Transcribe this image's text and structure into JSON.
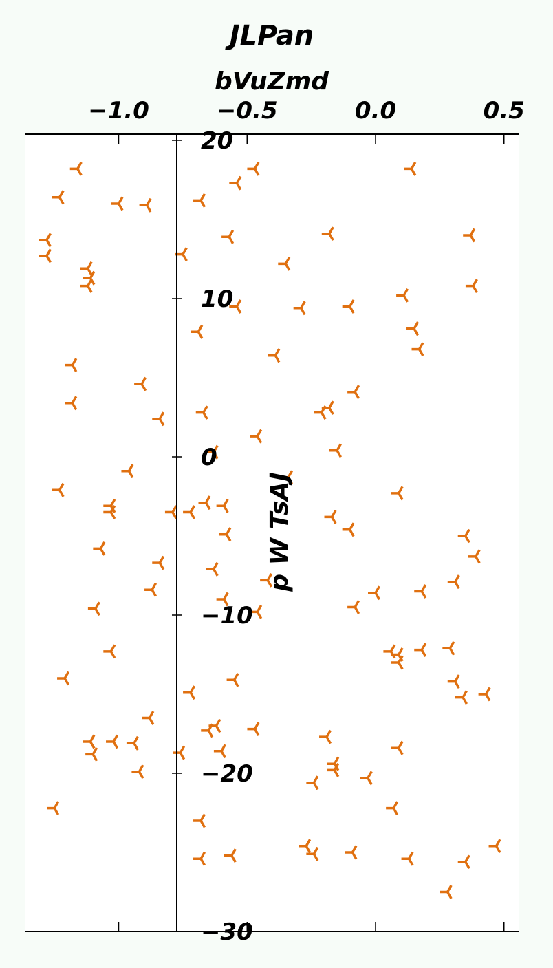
{
  "chart_data": {
    "type": "scatter",
    "title": "JLPan",
    "xlabel": "bVuZmd",
    "ylabel": "p W TsAJ",
    "xlim": [
      -1.365,
      0.555
    ],
    "ylim": [
      -30,
      20.3
    ],
    "x_ticks": [
      -1.0,
      -0.5,
      0.0,
      0.5
    ],
    "x_tick_labels": [
      "−1.0",
      "−0.5",
      "0.0",
      "0.5"
    ],
    "y_ticks": [
      20,
      10,
      0,
      -10,
      -20,
      -30
    ],
    "y_tick_labels": [
      "20",
      "10",
      "0",
      "−10",
      "−20",
      "−30"
    ],
    "x_axis_position": "top",
    "grid": false,
    "legend": "none",
    "marker": "tri-left",
    "marker_color": "#e07010",
    "series": [
      {
        "values": [
          [
            -1.16,
            18.2
          ],
          [
            -0.47,
            18.2
          ],
          [
            0.14,
            18.2
          ],
          [
            -0.54,
            17.3
          ],
          [
            -1.23,
            16.4
          ],
          [
            -1.0,
            16.0
          ],
          [
            -0.89,
            15.9
          ],
          [
            -0.68,
            16.2
          ],
          [
            -1.28,
            13.7
          ],
          [
            -0.57,
            13.9
          ],
          [
            -0.18,
            14.1
          ],
          [
            0.37,
            14.0
          ],
          [
            -1.28,
            12.7
          ],
          [
            -0.75,
            12.8
          ],
          [
            -0.35,
            12.2
          ],
          [
            -1.12,
            11.9
          ],
          [
            -1.11,
            11.3
          ],
          [
            -1.12,
            10.8
          ],
          [
            0.38,
            10.8
          ],
          [
            0.11,
            10.2
          ],
          [
            -0.54,
            9.5
          ],
          [
            -0.29,
            9.4
          ],
          [
            -0.1,
            9.5
          ],
          [
            0.15,
            8.1
          ],
          [
            -0.69,
            7.9
          ],
          [
            0.17,
            6.8
          ],
          [
            -0.39,
            6.4
          ],
          [
            -1.18,
            5.8
          ],
          [
            -0.91,
            4.6
          ],
          [
            -1.18,
            3.4
          ],
          [
            -0.08,
            4.1
          ],
          [
            -0.18,
            3.1
          ],
          [
            -0.21,
            2.8
          ],
          [
            -0.67,
            2.8
          ],
          [
            -0.84,
            2.4
          ],
          [
            -0.46,
            1.3
          ],
          [
            -0.63,
            0.3
          ],
          [
            -0.15,
            0.4
          ],
          [
            -0.96,
            -0.9
          ],
          [
            -0.34,
            -1.3
          ],
          [
            -1.23,
            -2.1
          ],
          [
            0.09,
            -2.3
          ],
          [
            -1.03,
            -3.1
          ],
          [
            -1.03,
            -3.5
          ],
          [
            -0.79,
            -3.5
          ],
          [
            -0.72,
            -3.5
          ],
          [
            -0.66,
            -2.9
          ],
          [
            -0.59,
            -3.1
          ],
          [
            -0.17,
            -3.8
          ],
          [
            -0.1,
            -4.6
          ],
          [
            -0.58,
            -4.9
          ],
          [
            0.35,
            -5.0
          ],
          [
            -1.07,
            -5.8
          ],
          [
            -0.84,
            -6.7
          ],
          [
            -0.63,
            -7.1
          ],
          [
            0.39,
            -6.3
          ],
          [
            -0.42,
            -7.8
          ],
          [
            0.31,
            -7.9
          ],
          [
            -0.87,
            -8.4
          ],
          [
            -0.59,
            -9.0
          ],
          [
            -0.46,
            -9.8
          ],
          [
            0.0,
            -8.6
          ],
          [
            0.18,
            -8.5
          ],
          [
            -1.09,
            -9.6
          ],
          [
            -0.08,
            -9.5
          ],
          [
            -1.03,
            -12.3
          ],
          [
            0.06,
            -12.3
          ],
          [
            0.09,
            -12.5
          ],
          [
            0.09,
            -13.0
          ],
          [
            0.18,
            -12.2
          ],
          [
            0.29,
            -12.1
          ],
          [
            -1.21,
            -14.0
          ],
          [
            -0.55,
            -14.1
          ],
          [
            -0.72,
            -14.9
          ],
          [
            0.31,
            -14.2
          ],
          [
            0.34,
            -15.2
          ],
          [
            0.43,
            -15.0
          ],
          [
            -0.88,
            -16.5
          ],
          [
            -0.62,
            -17.0
          ],
          [
            -0.65,
            -17.3
          ],
          [
            -0.47,
            -17.2
          ],
          [
            -0.19,
            -17.7
          ],
          [
            -1.11,
            -18.0
          ],
          [
            -1.02,
            -18.0
          ],
          [
            -0.94,
            -18.1
          ],
          [
            0.09,
            -18.4
          ],
          [
            -1.1,
            -18.8
          ],
          [
            -0.76,
            -18.7
          ],
          [
            -0.6,
            -18.6
          ],
          [
            -0.16,
            -19.4
          ],
          [
            -0.16,
            -19.8
          ],
          [
            -0.92,
            -19.9
          ],
          [
            -0.24,
            -20.6
          ],
          [
            -0.03,
            -20.3
          ],
          [
            0.07,
            -22.2
          ],
          [
            -1.25,
            -22.2
          ],
          [
            -0.68,
            -23.0
          ],
          [
            -0.27,
            -24.6
          ],
          [
            -0.24,
            -25.1
          ],
          [
            -0.09,
            -25.0
          ],
          [
            0.47,
            -24.6
          ],
          [
            -0.68,
            -25.4
          ],
          [
            -0.56,
            -25.2
          ],
          [
            0.13,
            -25.4
          ],
          [
            0.35,
            -25.6
          ],
          [
            0.28,
            -27.5
          ]
        ]
      }
    ]
  }
}
